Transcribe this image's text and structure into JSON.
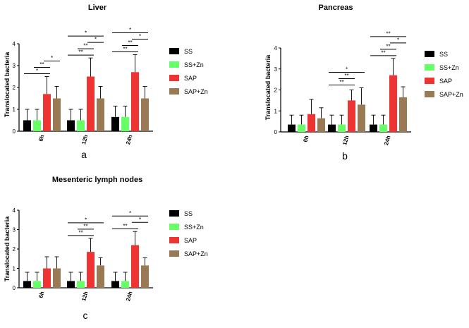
{
  "chart_data": [
    {
      "type": "bar",
      "title": "Liver",
      "panel_label": "a",
      "ylabel": "Translocated bacteria",
      "xlabel": "",
      "ylim": [
        0,
        4
      ],
      "yticks": [
        "0",
        "1",
        "2",
        "3",
        "4"
      ],
      "grid": false,
      "legend": "right",
      "categories": [
        "6h",
        "12h",
        "24h"
      ],
      "series": [
        {
          "name": "SS",
          "color": "#000000",
          "values": [
            0.5,
            0.5,
            0.65
          ],
          "errors": [
            0.5,
            0.5,
            0.5
          ]
        },
        {
          "name": "SS+Zn",
          "color": "#66ff66",
          "values": [
            0.5,
            0.5,
            0.65
          ],
          "errors": [
            0.5,
            0.5,
            0.5
          ]
        },
        {
          "name": "SAP",
          "color": "#ee3333",
          "values": [
            1.7,
            2.5,
            2.7
          ],
          "errors": [
            0.8,
            0.85,
            0.8
          ]
        },
        {
          "name": "SAP+Zn",
          "color": "#9a7a55",
          "values": [
            1.5,
            1.5,
            1.5
          ],
          "errors": [
            0.55,
            0.55,
            0.55
          ]
        }
      ],
      "significance": [
        {
          "category": "6h",
          "from": 0,
          "to": 2,
          "label": "*",
          "level": 0
        },
        {
          "category": "6h",
          "from": 1,
          "to": 2,
          "label": "**",
          "level": 1
        },
        {
          "category": "6h",
          "from": 2,
          "to": 3,
          "label": "*",
          "level": 2
        },
        {
          "category": "12h",
          "from": 0,
          "to": 2,
          "label": "**",
          "level": 0
        },
        {
          "category": "12h",
          "from": 1,
          "to": 2,
          "label": "**",
          "level": 1
        },
        {
          "category": "12h",
          "from": 2,
          "to": 3,
          "label": "*",
          "level": 2
        },
        {
          "category": "12h",
          "from": 0,
          "to": 3,
          "label": "*",
          "level": 3
        },
        {
          "category": "24h",
          "from": 0,
          "to": 2,
          "label": "**",
          "level": 0
        },
        {
          "category": "24h",
          "from": 1,
          "to": 2,
          "label": "**",
          "level": 1
        },
        {
          "category": "24h",
          "from": 2,
          "to": 3,
          "label": "*",
          "level": 2
        },
        {
          "category": "24h",
          "from": 0,
          "to": 3,
          "label": "*",
          "level": 3
        }
      ]
    },
    {
      "type": "bar",
      "title": "Pancreas",
      "panel_label": "b",
      "ylabel": "Translocated bacteria",
      "xlabel": "",
      "ylim": [
        0,
        4
      ],
      "yticks": [
        "0",
        "1",
        "2",
        "3",
        "4"
      ],
      "grid": false,
      "legend": "right",
      "categories": [
        "6h",
        "12h",
        "24h"
      ],
      "series": [
        {
          "name": "SS",
          "color": "#000000",
          "values": [
            0.35,
            0.35,
            0.35
          ],
          "errors": [
            0.45,
            0.45,
            0.45
          ]
        },
        {
          "name": "SS+Zn",
          "color": "#66ff66",
          "values": [
            0.35,
            0.35,
            0.35
          ],
          "errors": [
            0.45,
            0.45,
            0.45
          ]
        },
        {
          "name": "SAP",
          "color": "#ee3333",
          "values": [
            0.85,
            1.5,
            2.7
          ],
          "errors": [
            0.7,
            0.5,
            0.8
          ]
        },
        {
          "name": "SAP+Zn",
          "color": "#9a7a55",
          "values": [
            0.65,
            1.3,
            1.65
          ],
          "errors": [
            0.5,
            0.8,
            0.5
          ]
        }
      ],
      "significance": [
        {
          "category": "12h",
          "from": 0,
          "to": 2,
          "label": "**",
          "level": 0
        },
        {
          "category": "12h",
          "from": 1,
          "to": 2,
          "label": "**",
          "level": 1
        },
        {
          "category": "12h",
          "from": 0,
          "to": 3,
          "label": "*",
          "level": 2
        },
        {
          "category": "24h",
          "from": 0,
          "to": 2,
          "label": "**",
          "level": 0
        },
        {
          "category": "24h",
          "from": 1,
          "to": 2,
          "label": "**",
          "level": 1
        },
        {
          "category": "24h",
          "from": 2,
          "to": 3,
          "label": "*",
          "level": 2
        },
        {
          "category": "24h",
          "from": 0,
          "to": 3,
          "label": "**",
          "level": 3
        }
      ]
    },
    {
      "type": "bar",
      "title": "Mesenteric lymph nodes",
      "panel_label": "c",
      "ylabel": "Translocated bacteria",
      "xlabel": "",
      "ylim": [
        0,
        4
      ],
      "yticks": [
        "0",
        "1",
        "2",
        "3",
        "4"
      ],
      "grid": false,
      "legend": "right",
      "categories": [
        "6h",
        "12h",
        "24h"
      ],
      "series": [
        {
          "name": "SS",
          "color": "#000000",
          "values": [
            0.35,
            0.35,
            0.35
          ],
          "errors": [
            0.45,
            0.45,
            0.45
          ]
        },
        {
          "name": "SS+Zn",
          "color": "#66ff66",
          "values": [
            0.35,
            0.35,
            0.35
          ],
          "errors": [
            0.45,
            0.45,
            0.45
          ]
        },
        {
          "name": "SAP",
          "color": "#ee3333",
          "values": [
            1.0,
            1.85,
            2.2
          ],
          "errors": [
            0.6,
            0.7,
            0.7
          ]
        },
        {
          "name": "SAP+Zn",
          "color": "#9a7a55",
          "values": [
            1.0,
            1.15,
            1.15
          ],
          "errors": [
            0.6,
            0.4,
            0.4
          ]
        }
      ],
      "significance": [
        {
          "category": "12h",
          "from": 0,
          "to": 2,
          "label": "**",
          "level": 0
        },
        {
          "category": "12h",
          "from": 1,
          "to": 2,
          "label": "**",
          "level": 1
        },
        {
          "category": "12h",
          "from": 0,
          "to": 3,
          "label": "*",
          "level": 2
        },
        {
          "category": "24h",
          "from": 0,
          "to": 2,
          "label": "**",
          "level": 0
        },
        {
          "category": "24h",
          "from": 2,
          "to": 3,
          "label": "*",
          "level": 1
        },
        {
          "category": "24h",
          "from": 0,
          "to": 3,
          "label": "*",
          "level": 2
        }
      ]
    }
  ]
}
